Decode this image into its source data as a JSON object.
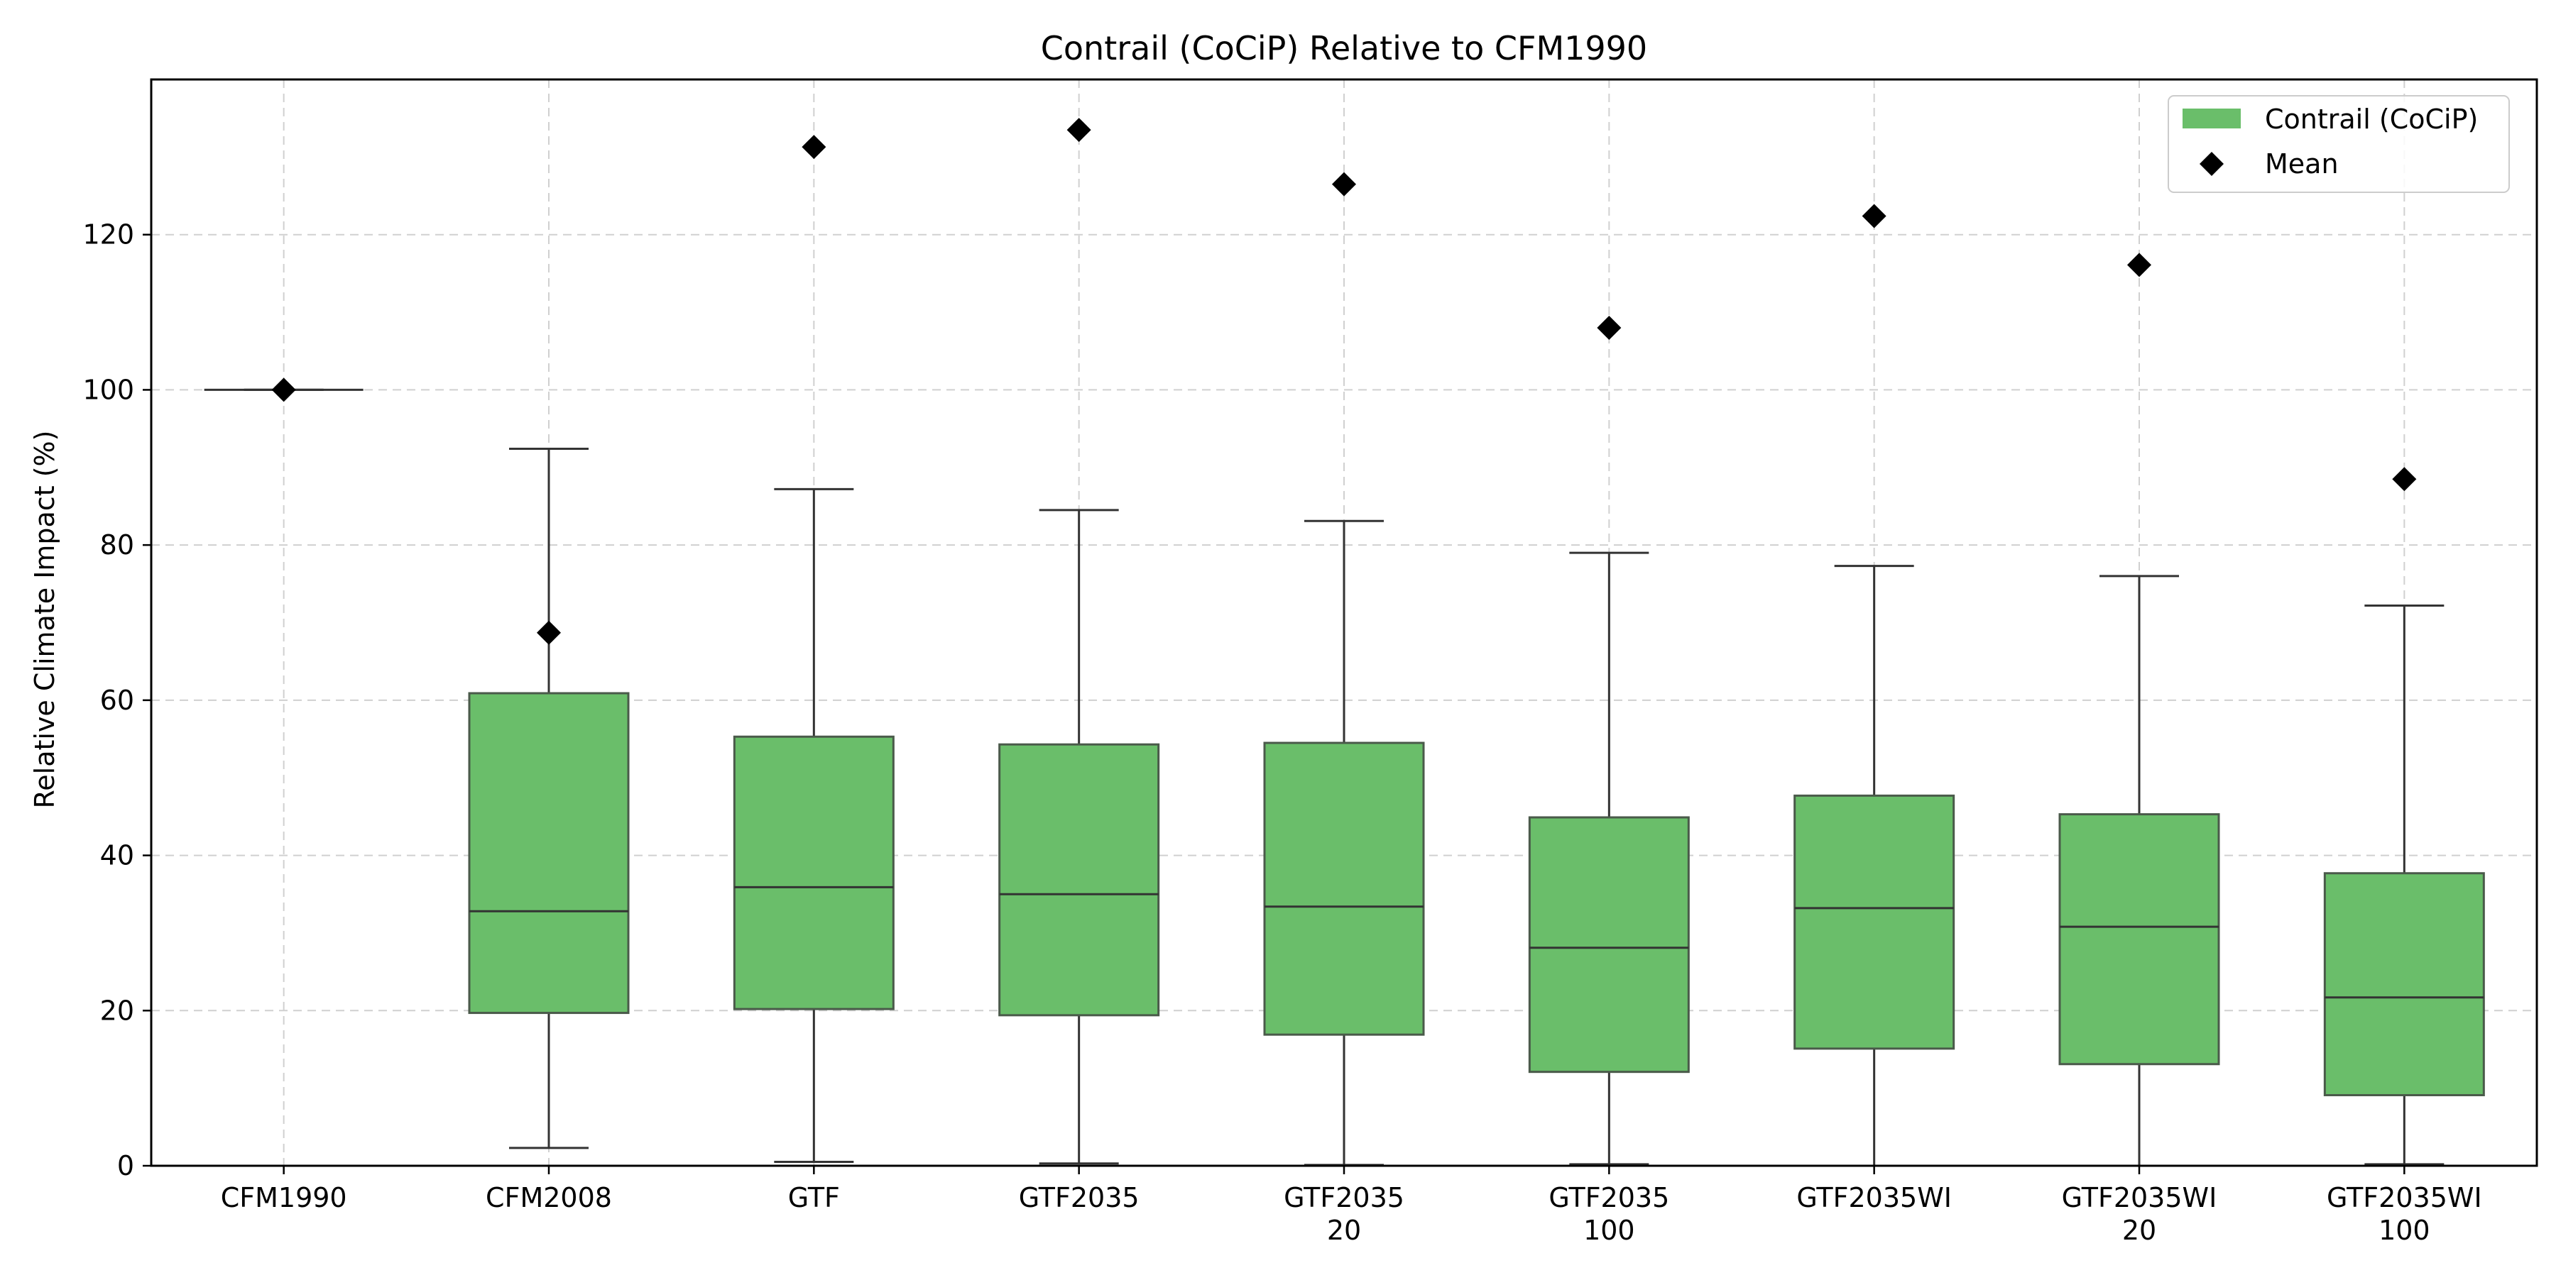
{
  "chart_data": {
    "type": "box",
    "title": "Contrail (CoCiP) Relative to CFM1990",
    "xlabel": "",
    "ylabel": "Relative Climate Impact (%)",
    "ylim": [
      0,
      140
    ],
    "yticks": [
      0,
      20,
      40,
      60,
      80,
      100,
      120
    ],
    "grid": true,
    "legend": {
      "placement": "top-right",
      "entries": [
        {
          "label": "Contrail (CoCiP)",
          "marker": "box"
        },
        {
          "label": "Mean",
          "marker": "diamond"
        }
      ]
    },
    "colors": {
      "box_fill": "#6abe6a",
      "box_edge": "#4a5a4a",
      "whisker": "#333333",
      "median": "#333333",
      "mean": "#000000",
      "grid": "#d0d0d0"
    },
    "categories": [
      {
        "label": [
          "CFM1990"
        ],
        "whisker_low": 100,
        "q1": 100,
        "median": 100,
        "q3": 100,
        "whisker_high": 100,
        "mean": 100
      },
      {
        "label": [
          "CFM2008"
        ],
        "whisker_low": 2.3,
        "q1": 19.7,
        "median": 32.8,
        "q3": 60.9,
        "whisker_high": 92.4,
        "mean": 68.7
      },
      {
        "label": [
          "GTF"
        ],
        "whisker_low": 0.5,
        "q1": 20.2,
        "median": 35.9,
        "q3": 55.3,
        "whisker_high": 87.2,
        "mean": 131.3
      },
      {
        "label": [
          "GTF2035"
        ],
        "whisker_low": 0.3,
        "q1": 19.4,
        "median": 35.0,
        "q3": 54.3,
        "whisker_high": 84.5,
        "mean": 133.5
      },
      {
        "label": [
          "GTF2035",
          "20"
        ],
        "whisker_low": 0.1,
        "q1": 16.9,
        "median": 33.4,
        "q3": 54.5,
        "whisker_high": 83.1,
        "mean": 126.5
      },
      {
        "label": [
          "GTF2035",
          "100"
        ],
        "whisker_low": 0.2,
        "q1": 12.1,
        "median": 28.1,
        "q3": 44.9,
        "whisker_high": 79.0,
        "mean": 108.0
      },
      {
        "label": [
          "GTF2035WI"
        ],
        "whisker_low": 0.0,
        "q1": 15.1,
        "median": 33.2,
        "q3": 47.7,
        "whisker_high": 77.3,
        "mean": 122.4
      },
      {
        "label": [
          "GTF2035WI",
          "20"
        ],
        "whisker_low": 0.0,
        "q1": 13.1,
        "median": 30.8,
        "q3": 45.3,
        "whisker_high": 76.0,
        "mean": 116.1
      },
      {
        "label": [
          "GTF2035WI",
          "100"
        ],
        "whisker_low": 0.2,
        "q1": 9.1,
        "median": 21.7,
        "q3": 37.7,
        "whisker_high": 72.2,
        "mean": 88.5
      }
    ]
  }
}
